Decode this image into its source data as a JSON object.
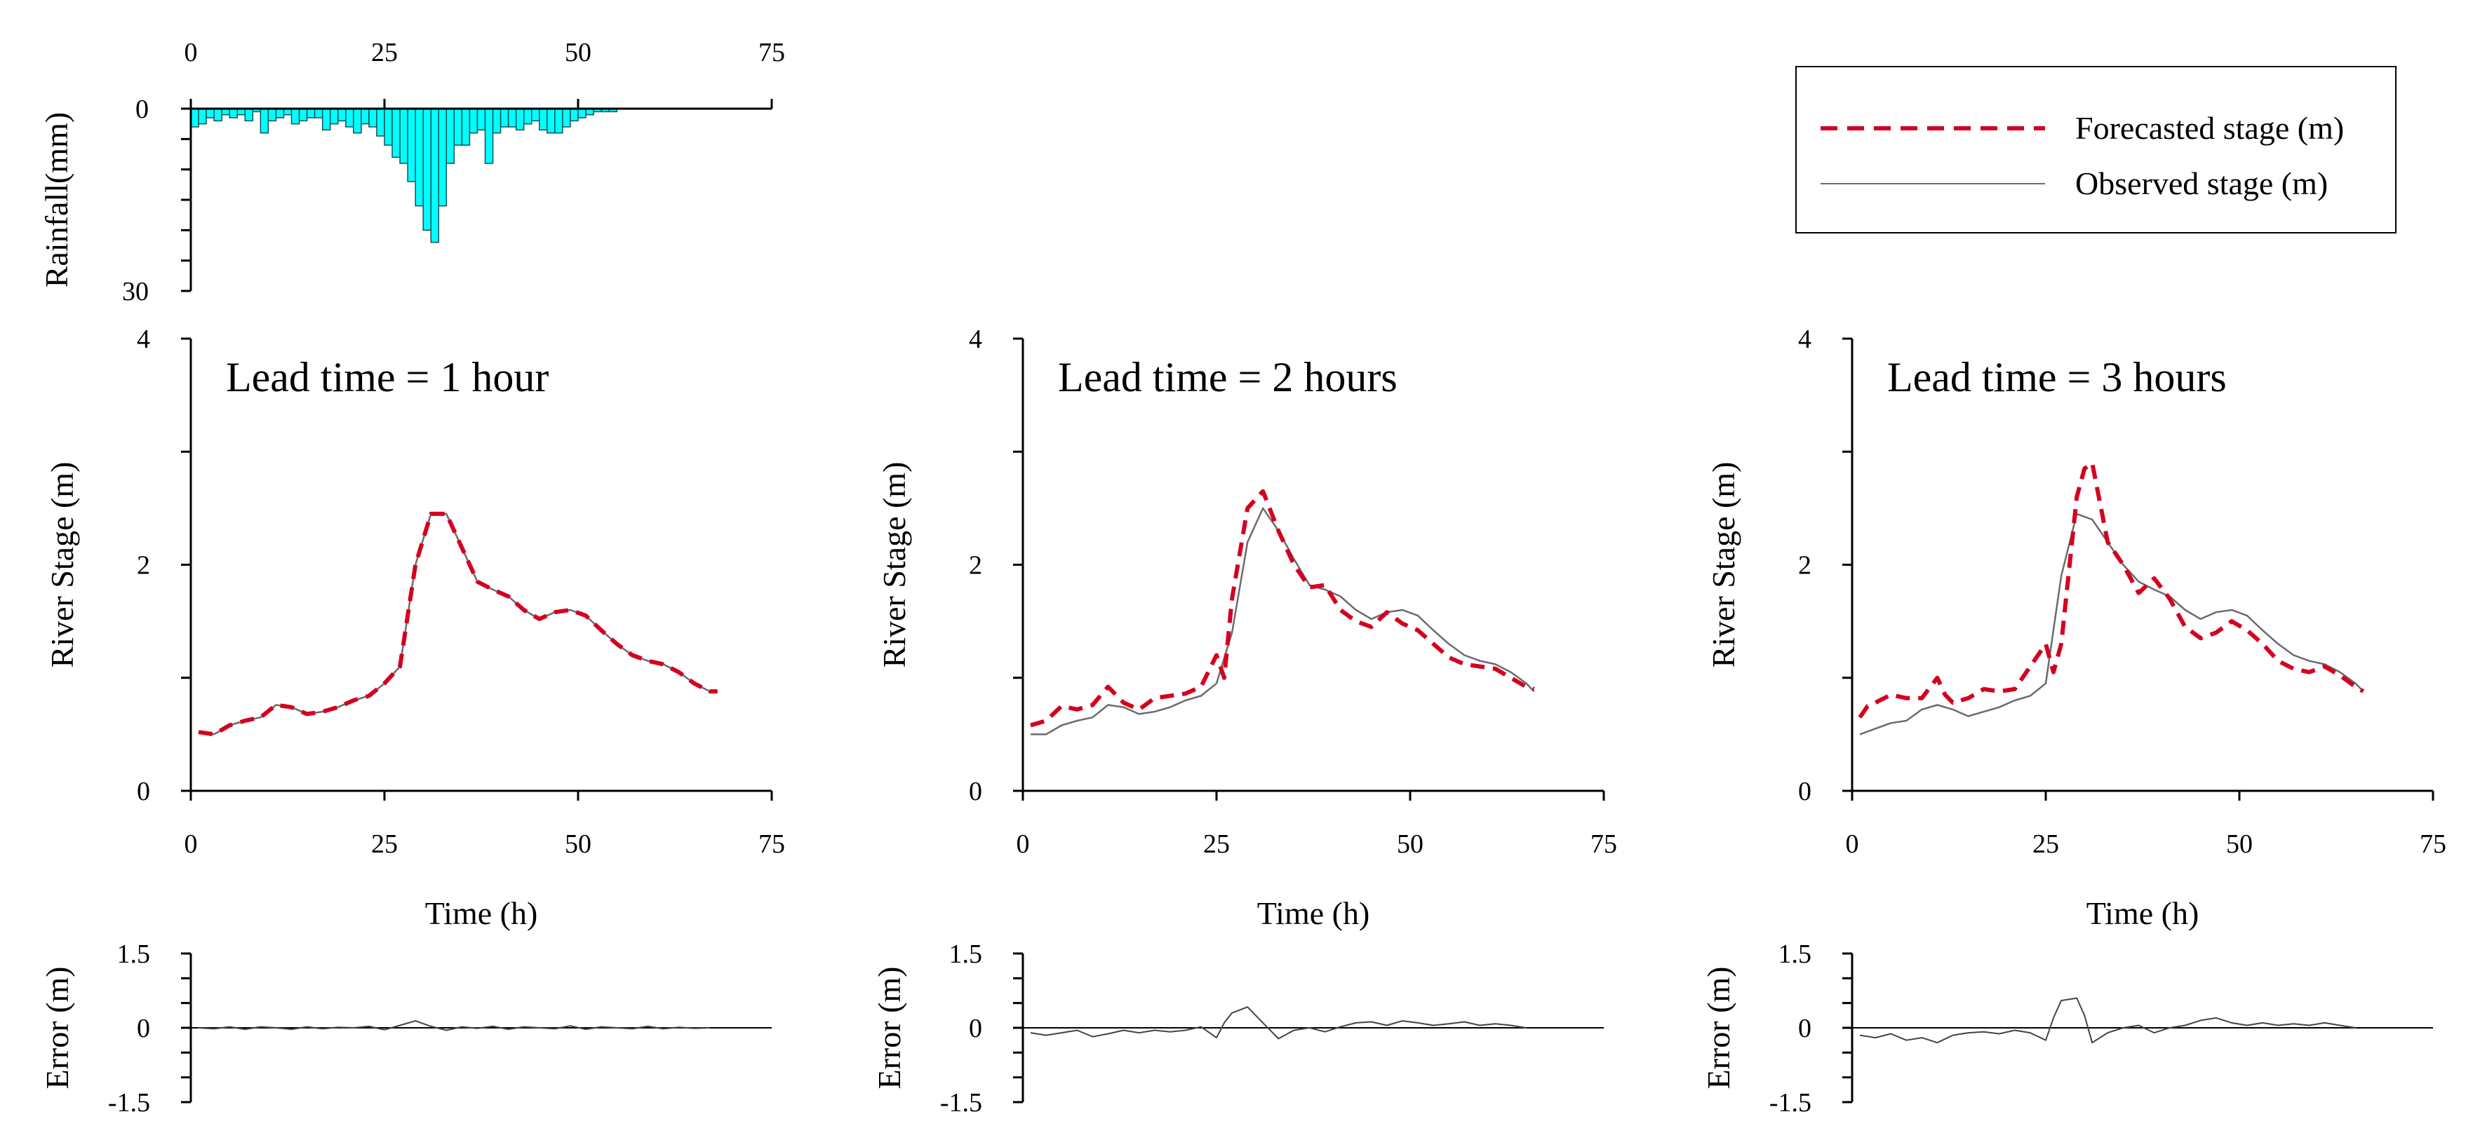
{
  "colors": {
    "forecast": "#D4001F",
    "observed": "#6b6b6b",
    "rain_fill": "#00FFFF",
    "rain_edge": "#1a4f55",
    "axis": "#000000"
  },
  "legend": {
    "items": [
      {
        "label": "Forecasted stage (m)",
        "style": "dashed"
      },
      {
        "label": "Observed stage (m)",
        "style": "solid"
      }
    ],
    "placement": "top-right"
  },
  "chart_data": [
    {
      "type": "bar",
      "id": "rainfall",
      "ylabel": "Rainfall(mm)",
      "xticks": [
        "0",
        "25",
        "50",
        "75"
      ],
      "yticks": [
        "0",
        "30"
      ],
      "xlim": [
        0,
        75
      ],
      "ylim": [
        0,
        30
      ],
      "inverted": true,
      "x_axis_top": true,
      "x": [
        1,
        2,
        3,
        4,
        5,
        6,
        7,
        8,
        9,
        10,
        11,
        12,
        13,
        14,
        15,
        16,
        17,
        18,
        19,
        20,
        21,
        22,
        23,
        24,
        25,
        26,
        27,
        28,
        29,
        30,
        31,
        32,
        33,
        34,
        35,
        36,
        37,
        38,
        39,
        40,
        41,
        42,
        43,
        44,
        45,
        46,
        47,
        48,
        49,
        50,
        51,
        52,
        53,
        54,
        55
      ],
      "values": [
        3,
        2.5,
        1.5,
        2,
        1,
        1.5,
        1,
        2,
        0.5,
        4,
        2,
        1.5,
        1,
        2.5,
        2,
        1.5,
        1.5,
        3.5,
        2.5,
        2,
        3,
        4,
        2.5,
        3,
        4.5,
        6,
        8,
        9,
        12,
        16,
        20,
        22,
        16,
        9,
        6,
        6,
        4,
        3.5,
        9,
        4,
        3,
        3,
        3.5,
        2.5,
        2,
        3.5,
        4,
        4,
        3,
        2,
        1.5,
        1,
        0.5,
        0.5,
        0.5
      ]
    },
    {
      "type": "line",
      "id": "lead1",
      "title": "Lead time = 1 hour",
      "xlabel": "Time (h)",
      "ylabel": "River Stage (m)",
      "xticks": [
        "0",
        "25",
        "50",
        "75"
      ],
      "yticks": [
        "0",
        "2",
        "4"
      ],
      "xlim": [
        0,
        75
      ],
      "ylim": [
        0,
        4
      ],
      "series": [
        {
          "name": "Observed stage (m)",
          "x": [
            1,
            3,
            5,
            7,
            9,
            11,
            13,
            15,
            17,
            19,
            21,
            23,
            25,
            27,
            29,
            31,
            33,
            35,
            37,
            39,
            41,
            43,
            45,
            47,
            49,
            51,
            53,
            55,
            57,
            59,
            61,
            63,
            65,
            67,
            68
          ],
          "y": [
            0.52,
            0.5,
            0.58,
            0.62,
            0.65,
            0.76,
            0.74,
            0.68,
            0.7,
            0.74,
            0.8,
            0.84,
            0.95,
            1.1,
            2.0,
            2.45,
            2.45,
            2.15,
            1.85,
            1.78,
            1.72,
            1.6,
            1.52,
            1.58,
            1.6,
            1.55,
            1.42,
            1.3,
            1.2,
            1.15,
            1.12,
            1.05,
            0.95,
            0.88,
            0.88
          ]
        },
        {
          "name": "Forecasted stage (m)",
          "x": [
            1,
            3,
            5,
            7,
            9,
            11,
            13,
            15,
            17,
            19,
            21,
            23,
            25,
            27,
            29,
            31,
            33,
            35,
            37,
            39,
            41,
            43,
            45,
            47,
            49,
            51,
            53,
            55,
            57,
            59,
            61,
            63,
            65,
            67,
            68
          ],
          "y": [
            0.52,
            0.5,
            0.58,
            0.62,
            0.65,
            0.76,
            0.74,
            0.68,
            0.7,
            0.74,
            0.8,
            0.84,
            0.95,
            1.1,
            2.0,
            2.45,
            2.45,
            2.15,
            1.85,
            1.78,
            1.72,
            1.6,
            1.52,
            1.58,
            1.6,
            1.55,
            1.42,
            1.3,
            1.2,
            1.15,
            1.12,
            1.05,
            0.95,
            0.88,
            0.88
          ]
        }
      ]
    },
    {
      "type": "line",
      "id": "lead2",
      "title": "Lead time = 2 hours",
      "xlabel": "Time (h)",
      "ylabel": "River Stage (m)",
      "xticks": [
        "0",
        "25",
        "50",
        "75"
      ],
      "yticks": [
        "0",
        "2",
        "4"
      ],
      "xlim": [
        0,
        75
      ],
      "ylim": [
        0,
        4
      ],
      "series": [
        {
          "name": "Observed stage (m)",
          "x": [
            1,
            3,
            5,
            7,
            9,
            11,
            13,
            15,
            17,
            19,
            21,
            23,
            25,
            27,
            29,
            31,
            33,
            35,
            37,
            39,
            41,
            43,
            45,
            47,
            49,
            51,
            53,
            55,
            57,
            59,
            61,
            63,
            65,
            66
          ],
          "y": [
            0.5,
            0.5,
            0.58,
            0.62,
            0.65,
            0.76,
            0.74,
            0.68,
            0.7,
            0.74,
            0.8,
            0.84,
            0.95,
            1.4,
            2.2,
            2.5,
            2.3,
            2.05,
            1.82,
            1.78,
            1.72,
            1.6,
            1.52,
            1.58,
            1.6,
            1.55,
            1.42,
            1.3,
            1.2,
            1.15,
            1.12,
            1.05,
            0.95,
            0.88
          ]
        },
        {
          "name": "Forecasted stage (m)",
          "x": [
            1,
            3,
            5,
            7,
            9,
            11,
            13,
            15,
            17,
            19,
            21,
            23,
            25,
            26,
            27,
            29,
            31,
            33,
            35,
            37,
            39,
            41,
            43,
            45,
            47,
            49,
            51,
            53,
            55,
            57,
            59,
            61,
            63,
            65,
            66
          ],
          "y": [
            0.58,
            0.62,
            0.75,
            0.72,
            0.76,
            0.92,
            0.78,
            0.72,
            0.82,
            0.84,
            0.86,
            0.92,
            1.2,
            1.0,
            1.7,
            2.5,
            2.65,
            2.3,
            2.0,
            1.8,
            1.82,
            1.6,
            1.5,
            1.45,
            1.58,
            1.48,
            1.42,
            1.3,
            1.18,
            1.12,
            1.1,
            1.08,
            1.0,
            0.92,
            0.9
          ]
        }
      ]
    },
    {
      "type": "line",
      "id": "lead3",
      "title": "Lead time = 3 hours",
      "xlabel": "Time (h)",
      "ylabel": "River Stage (m)",
      "xticks": [
        "0",
        "25",
        "50",
        "75"
      ],
      "yticks": [
        "0",
        "2",
        "4"
      ],
      "xlim": [
        0,
        75
      ],
      "ylim": [
        0,
        4
      ],
      "series": [
        {
          "name": "Observed stage (m)",
          "x": [
            1,
            3,
            5,
            7,
            9,
            11,
            13,
            15,
            17,
            19,
            21,
            23,
            25,
            27,
            29,
            31,
            33,
            35,
            37,
            39,
            41,
            43,
            45,
            47,
            49,
            51,
            53,
            55,
            57,
            59,
            61,
            63,
            65,
            66
          ],
          "y": [
            0.5,
            0.55,
            0.6,
            0.62,
            0.72,
            0.76,
            0.72,
            0.66,
            0.7,
            0.74,
            0.8,
            0.84,
            0.95,
            1.9,
            2.45,
            2.4,
            2.2,
            2.0,
            1.85,
            1.78,
            1.72,
            1.6,
            1.52,
            1.58,
            1.6,
            1.55,
            1.42,
            1.3,
            1.2,
            1.15,
            1.12,
            1.05,
            0.95,
            0.88
          ]
        },
        {
          "name": "Forecasted stage (m)",
          "x": [
            1,
            2,
            3,
            5,
            7,
            9,
            11,
            12,
            13,
            15,
            17,
            19,
            21,
            23,
            24,
            25,
            26,
            27,
            29,
            30,
            31,
            33,
            35,
            37,
            39,
            41,
            43,
            45,
            47,
            49,
            51,
            53,
            55,
            57,
            59,
            61,
            63,
            65,
            66
          ],
          "y": [
            0.65,
            0.75,
            0.78,
            0.85,
            0.82,
            0.82,
            1.0,
            0.85,
            0.78,
            0.82,
            0.9,
            0.88,
            0.9,
            1.1,
            1.2,
            1.3,
            1.05,
            1.3,
            2.6,
            2.85,
            2.9,
            2.2,
            2.0,
            1.75,
            1.88,
            1.7,
            1.45,
            1.35,
            1.4,
            1.5,
            1.42,
            1.3,
            1.15,
            1.08,
            1.05,
            1.1,
            1.02,
            0.92,
            0.88
          ]
        }
      ]
    },
    {
      "type": "line",
      "id": "err1",
      "ylabel": "Error (m)",
      "yticks": [
        "1.5",
        "0",
        "-1.5"
      ],
      "xlim": [
        0,
        75
      ],
      "ylim": [
        -1.5,
        1.5
      ],
      "series": [
        {
          "name": "Error",
          "x": [
            1,
            3,
            5,
            7,
            9,
            11,
            13,
            15,
            17,
            19,
            21,
            23,
            25,
            27,
            29,
            31,
            33,
            35,
            37,
            39,
            41,
            43,
            45,
            47,
            49,
            51,
            53,
            55,
            57,
            59,
            61,
            63,
            65,
            67
          ],
          "y": [
            0.0,
            -0.02,
            0.02,
            -0.03,
            0.02,
            0.0,
            -0.03,
            0.02,
            -0.02,
            0.01,
            0.0,
            0.03,
            -0.04,
            0.05,
            0.14,
            0.03,
            -0.05,
            0.02,
            -0.01,
            0.03,
            -0.03,
            0.02,
            0.0,
            -0.02,
            0.04,
            -0.03,
            0.02,
            0.0,
            -0.02,
            0.03,
            -0.02,
            0.01,
            -0.01,
            0.0
          ]
        }
      ]
    },
    {
      "type": "line",
      "id": "err2",
      "ylabel": "Error (m)",
      "yticks": [
        "1.5",
        "0",
        "-1.5"
      ],
      "xlim": [
        0,
        75
      ],
      "ylim": [
        -1.5,
        1.5
      ],
      "series": [
        {
          "name": "Error",
          "x": [
            1,
            3,
            5,
            7,
            9,
            11,
            13,
            15,
            17,
            19,
            21,
            23,
            25,
            26,
            27,
            29,
            31,
            33,
            35,
            37,
            39,
            41,
            43,
            45,
            47,
            49,
            51,
            53,
            55,
            57,
            59,
            61,
            63,
            65
          ],
          "y": [
            -0.1,
            -0.15,
            -0.1,
            -0.05,
            -0.18,
            -0.12,
            -0.05,
            -0.1,
            -0.05,
            -0.08,
            -0.05,
            0.02,
            -0.2,
            0.1,
            0.3,
            0.42,
            0.1,
            -0.22,
            -0.05,
            0.0,
            -0.08,
            0.02,
            0.1,
            0.12,
            0.05,
            0.14,
            0.1,
            0.05,
            0.08,
            0.12,
            0.05,
            0.08,
            0.05,
            0.0
          ]
        }
      ]
    },
    {
      "type": "line",
      "id": "err3",
      "ylabel": "Error (m)",
      "yticks": [
        "1.5",
        "0",
        "-1.5"
      ],
      "xlim": [
        0,
        75
      ],
      "ylim": [
        -1.5,
        1.5
      ],
      "series": [
        {
          "name": "Error",
          "x": [
            1,
            3,
            5,
            7,
            9,
            11,
            13,
            15,
            17,
            19,
            21,
            23,
            25,
            26,
            27,
            29,
            30,
            31,
            33,
            35,
            37,
            39,
            41,
            43,
            45,
            47,
            49,
            51,
            53,
            55,
            57,
            59,
            61,
            63,
            65
          ],
          "y": [
            -0.15,
            -0.2,
            -0.12,
            -0.25,
            -0.2,
            -0.3,
            -0.15,
            -0.1,
            -0.08,
            -0.12,
            -0.05,
            -0.1,
            -0.25,
            0.2,
            0.55,
            0.6,
            0.25,
            -0.3,
            -0.1,
            0.0,
            0.05,
            -0.1,
            0.0,
            0.05,
            0.15,
            0.2,
            0.1,
            0.05,
            0.1,
            0.05,
            0.08,
            0.05,
            0.1,
            0.05,
            0.0
          ]
        }
      ]
    }
  ]
}
